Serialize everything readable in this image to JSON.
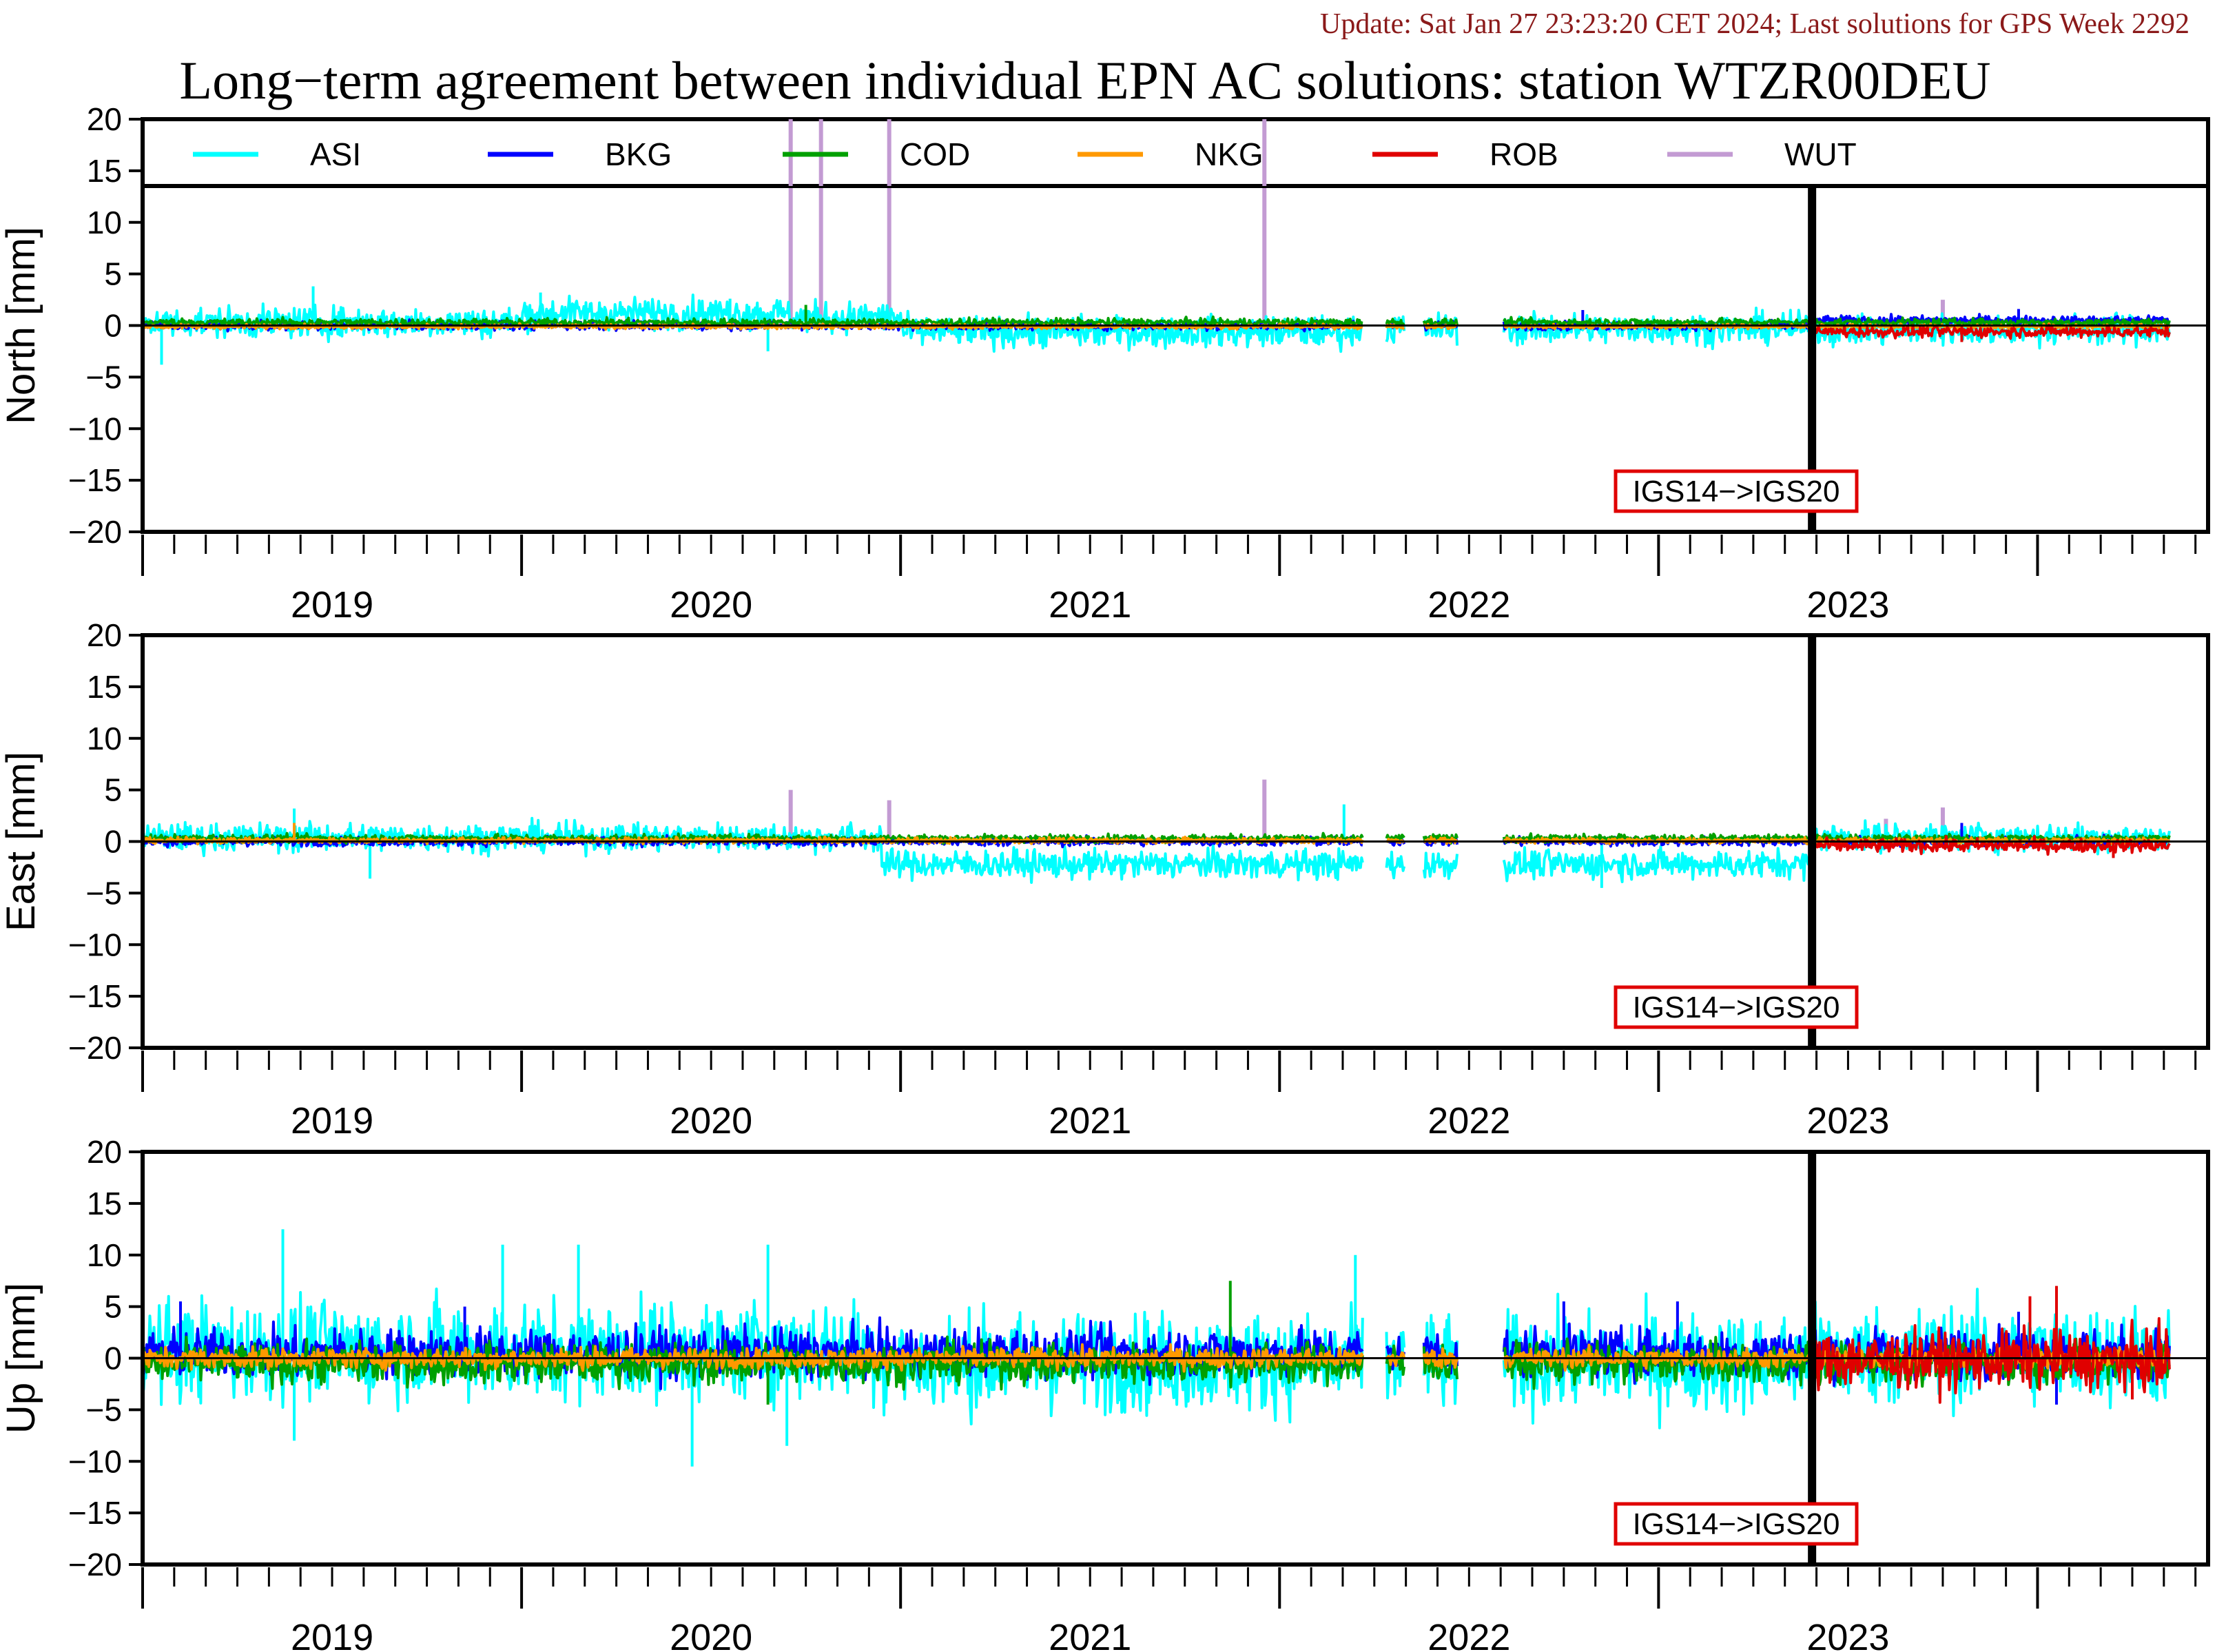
{
  "header": {
    "update_text": "Update: Sat Jan 27 23:23:20 CET 2024; Last solutions for GPS Week 2292",
    "title": "Long−term agreement between individual EPN AC solutions: station WTZR00DEU"
  },
  "colors": {
    "ASI": "#00ffff",
    "BKG": "#0000ff",
    "COD": "#00a000",
    "NKG": "#ff9900",
    "ROB": "#e00000",
    "WUT": "#c39bd3",
    "update_text": "#8b1a1a"
  },
  "legend": {
    "entries": [
      "ASI",
      "BKG",
      "COD",
      "NKG",
      "ROB",
      "WUT"
    ]
  },
  "annotation": {
    "text": "IGS14−>IGS20",
    "border_color": "#e00000",
    "frame_change_x": 2022.905
  },
  "chart_data": [
    {
      "type": "line",
      "panel": "north",
      "ylabel": "North [mm]",
      "ylim": [
        -20,
        20
      ],
      "xlim": [
        2018.5,
        2023.95
      ],
      "yticks": [
        "20",
        "15",
        "10",
        "5",
        "0",
        "−5",
        "−10",
        "−15",
        "−20"
      ],
      "xtick_labels": [
        "2019",
        "2020",
        "2021",
        "2022",
        "2023"
      ],
      "grid": false,
      "legend": "top",
      "series": [
        {
          "name": "ASI",
          "amplitude_mm": 1.4,
          "offset_mm": 0.6,
          "range_x": [
            2018.5,
            2023.85
          ],
          "segments": [
            [
              2018.5,
              2019.5,
              0.3
            ],
            [
              2019.5,
              2020.2,
              1.2
            ],
            [
              2020.2,
              2020.5,
              0.8
            ],
            [
              2020.5,
              2021.7,
              -0.6
            ],
            [
              2021.7,
              2022.9,
              -0.3
            ],
            [
              2022.9,
              2023.85,
              -0.4
            ]
          ],
          "spikes": [
            [
              2018.95,
              3.8
            ],
            [
              2018.55,
              -3.8
            ],
            [
              2019.55,
              3.2
            ],
            [
              2020.15,
              -2.5
            ],
            [
              2020.05,
              2.6
            ]
          ]
        },
        {
          "name": "BKG",
          "amplitude_mm": 0.4,
          "offset_mm": 0.1,
          "range_x": [
            2018.5,
            2023.85
          ],
          "segments": [
            [
              2018.5,
              2022.9,
              0.0
            ],
            [
              2022.9,
              2023.85,
              0.5
            ]
          ],
          "spikes": [
            [
              2022.3,
              1.5
            ],
            [
              2023.45,
              1.6
            ]
          ]
        },
        {
          "name": "COD",
          "amplitude_mm": 0.35,
          "offset_mm": 0.3,
          "range_x": [
            2018.5,
            2023.85
          ],
          "segments": [
            [
              2018.5,
              2023.85,
              0.3
            ]
          ],
          "spikes": [
            [
              2020.25,
              2.0
            ]
          ]
        },
        {
          "name": "NKG",
          "amplitude_mm": 0.2,
          "offset_mm": 0.0,
          "range_x": [
            2018.5,
            2023.85
          ],
          "segments": [
            [
              2018.5,
              2023.85,
              -0.1
            ]
          ],
          "spikes": []
        },
        {
          "name": "ROB",
          "amplitude_mm": 0.5,
          "offset_mm": -0.5,
          "range_x": [
            2022.9,
            2023.85
          ],
          "segments": [
            [
              2022.9,
              2023.85,
              -0.6
            ]
          ],
          "spikes": [
            [
              2023.3,
              -1.6
            ]
          ]
        },
        {
          "name": "WUT",
          "amplitude_mm": 0.1,
          "offset_mm": 0.0,
          "range_x": [
            2018.5,
            2023.85
          ],
          "segments": [
            [
              2018.5,
              2023.85,
              0.0
            ]
          ],
          "spikes": [
            [
              2020.21,
              25
            ],
            [
              2020.29,
              25
            ],
            [
              2020.47,
              25
            ],
            [
              2021.46,
              25
            ],
            [
              2023.25,
              2.5
            ]
          ]
        }
      ]
    },
    {
      "type": "line",
      "panel": "east",
      "ylabel": "East [mm]",
      "ylim": [
        -20,
        20
      ],
      "xlim": [
        2018.5,
        2023.95
      ],
      "yticks": [
        "20",
        "15",
        "10",
        "5",
        "0",
        "−5",
        "−10",
        "−15",
        "−20"
      ],
      "xtick_labels": [
        "2019",
        "2020",
        "2021",
        "2022",
        "2023"
      ],
      "grid": false,
      "series": [
        {
          "name": "ASI",
          "amplitude_mm": 1.3,
          "offset_mm": 0.0,
          "range_x": [
            2018.5,
            2023.85
          ],
          "segments": [
            [
              2018.5,
              2020.45,
              0.4
            ],
            [
              2020.45,
              2022.9,
              -2.2
            ],
            [
              2022.9,
              2023.85,
              0.4
            ]
          ],
          "spikes": [
            [
              2021.67,
              3.6
            ],
            [
              2022.35,
              -4.5
            ],
            [
              2018.9,
              3.2
            ],
            [
              2019.1,
              -3.6
            ]
          ]
        },
        {
          "name": "BKG",
          "amplitude_mm": 0.4,
          "offset_mm": 0.0,
          "range_x": [
            2018.5,
            2023.85
          ],
          "segments": [
            [
              2018.5,
              2023.85,
              0.0
            ]
          ],
          "spikes": [
            [
              2023.3,
              1.8
            ]
          ]
        },
        {
          "name": "COD",
          "amplitude_mm": 0.35,
          "offset_mm": 0.3,
          "range_x": [
            2018.5,
            2023.85
          ],
          "segments": [
            [
              2018.5,
              2023.85,
              0.3
            ]
          ],
          "spikes": []
        },
        {
          "name": "NKG",
          "amplitude_mm": 0.25,
          "offset_mm": 0.0,
          "range_x": [
            2018.5,
            2023.85
          ],
          "segments": [
            [
              2018.5,
              2023.85,
              0.1
            ]
          ],
          "spikes": [
            [
              2018.9,
              1.8
            ]
          ]
        },
        {
          "name": "ROB",
          "amplitude_mm": 0.6,
          "offset_mm": -0.3,
          "range_x": [
            2022.9,
            2023.85
          ],
          "segments": [
            [
              2022.9,
              2023.85,
              -0.4
            ]
          ],
          "spikes": [
            [
              2023.7,
              -1.6
            ]
          ]
        },
        {
          "name": "WUT",
          "amplitude_mm": 0.1,
          "offset_mm": 0.0,
          "range_x": [
            2018.5,
            2023.85
          ],
          "segments": [
            [
              2018.5,
              2023.85,
              0.0
            ]
          ],
          "spikes": [
            [
              2020.21,
              5.0
            ],
            [
              2020.47,
              4.0
            ],
            [
              2021.46,
              6.0
            ],
            [
              2023.1,
              2.2
            ],
            [
              2023.25,
              3.3
            ]
          ]
        }
      ]
    },
    {
      "type": "line",
      "panel": "up",
      "ylabel": "Up [mm]",
      "ylim": [
        -20,
        20
      ],
      "xlim": [
        2018.5,
        2023.95
      ],
      "yticks": [
        "20",
        "15",
        "10",
        "5",
        "0",
        "−5",
        "−10",
        "−15",
        "−20"
      ],
      "xtick_labels": [
        "2019",
        "2020",
        "2021",
        "2022",
        "2023"
      ],
      "grid": false,
      "series": [
        {
          "name": "ASI",
          "amplitude_mm": 4.5,
          "offset_mm": 0.5,
          "range_x": [
            2018.5,
            2023.85
          ],
          "segments": [
            [
              2018.5,
              2020.45,
              0.8
            ],
            [
              2020.45,
              2022.9,
              -0.4
            ],
            [
              2022.9,
              2023.85,
              0.3
            ]
          ],
          "spikes": [
            [
              2018.87,
              12.5
            ],
            [
              2019.45,
              11.0
            ],
            [
              2019.65,
              11.0
            ],
            [
              2020.15,
              11.0
            ],
            [
              2019.95,
              -10.5
            ],
            [
              2020.2,
              -8.5
            ],
            [
              2018.9,
              -8.0
            ],
            [
              2021.7,
              10.0
            ]
          ]
        },
        {
          "name": "BKG",
          "amplitude_mm": 2.2,
          "offset_mm": 0.6,
          "range_x": [
            2018.5,
            2023.85
          ],
          "segments": [
            [
              2018.5,
              2023.85,
              0.5
            ]
          ],
          "spikes": [
            [
              2018.6,
              5.5
            ],
            [
              2019.35,
              5.0
            ],
            [
              2022.25,
              5.5
            ],
            [
              2022.55,
              5.5
            ],
            [
              2023.45,
              4.5
            ],
            [
              2023.55,
              -4.5
            ]
          ]
        },
        {
          "name": "COD",
          "amplitude_mm": 1.8,
          "offset_mm": -0.5,
          "range_x": [
            2018.5,
            2023.85
          ],
          "segments": [
            [
              2018.5,
              2023.85,
              -0.5
            ]
          ],
          "spikes": [
            [
              2021.37,
              7.5
            ],
            [
              2020.15,
              -4.5
            ]
          ]
        },
        {
          "name": "NKG",
          "amplitude_mm": 0.9,
          "offset_mm": 0.0,
          "range_x": [
            2018.5,
            2023.85
          ],
          "segments": [
            [
              2018.5,
              2023.85,
              0.0
            ]
          ],
          "spikes": []
        },
        {
          "name": "ROB",
          "amplitude_mm": 2.6,
          "offset_mm": -0.3,
          "range_x": [
            2022.9,
            2023.85
          ],
          "segments": [
            [
              2022.9,
              2023.85,
              -0.2
            ]
          ],
          "spikes": [
            [
              2023.48,
              6.0
            ],
            [
              2023.55,
              7.0
            ],
            [
              2023.75,
              -4.0
            ]
          ]
        },
        {
          "name": "WUT",
          "amplitude_mm": 0.3,
          "offset_mm": 0.0,
          "range_x": [
            2018.5,
            2023.85
          ],
          "segments": [
            [
              2018.5,
              2023.85,
              0.0
            ]
          ],
          "spikes": []
        }
      ]
    }
  ]
}
